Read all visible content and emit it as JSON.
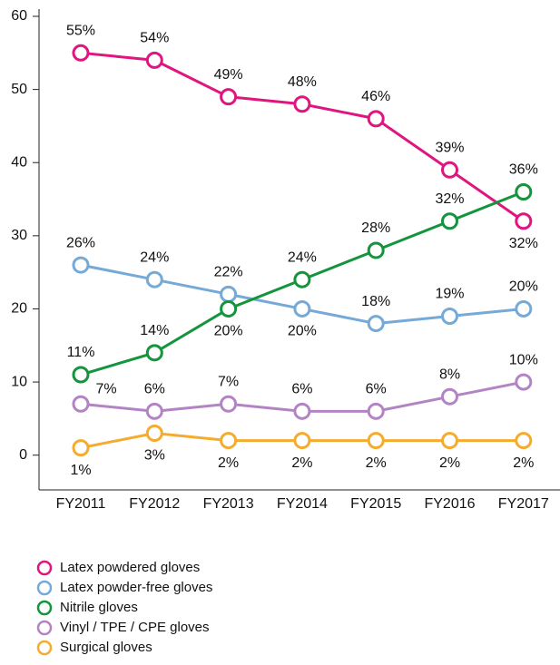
{
  "chart_data": {
    "type": "line",
    "categories": [
      "FY2011",
      "FY2012",
      "FY2013",
      "FY2014",
      "FY2015",
      "FY2016",
      "FY2017"
    ],
    "series": [
      {
        "name": "Latex powdered gloves",
        "color": "#e0157f",
        "values": [
          55,
          54,
          49,
          48,
          46,
          39,
          32
        ],
        "value_labels": [
          "55%",
          "54%",
          "49%",
          "48%",
          "46%",
          "39%",
          "32%"
        ]
      },
      {
        "name": "Latex powder-free gloves",
        "color": "#74a9d8",
        "values": [
          26,
          24,
          22,
          20,
          18,
          19,
          20
        ],
        "value_labels": [
          "26%",
          "24%",
          "22%",
          "20%",
          "18%",
          "19%",
          "20%"
        ]
      },
      {
        "name": "Nitrile gloves",
        "color": "#14943c",
        "values": [
          11,
          14,
          20,
          24,
          28,
          32,
          36
        ],
        "value_labels": [
          "11%",
          "14%",
          "20%",
          "24%",
          "28%",
          "32%",
          "36%"
        ]
      },
      {
        "name": "Vinyl / TPE / CPE gloves",
        "color": "#b384c4",
        "values": [
          7,
          6,
          7,
          6,
          6,
          8,
          10
        ],
        "value_labels": [
          "7%",
          "6%",
          "7%",
          "6%",
          "6%",
          "8%",
          "10%"
        ]
      },
      {
        "name": "Surgical gloves",
        "color": "#f5ab2e",
        "values": [
          1,
          3,
          2,
          2,
          2,
          2,
          2
        ],
        "value_labels": [
          "1%",
          "3%",
          "2%",
          "2%",
          "2%",
          "2%",
          "2%"
        ]
      }
    ],
    "ylim": [
      -5,
      60
    ],
    "yticks": [
      0,
      10,
      20,
      30,
      40,
      50,
      60
    ]
  }
}
